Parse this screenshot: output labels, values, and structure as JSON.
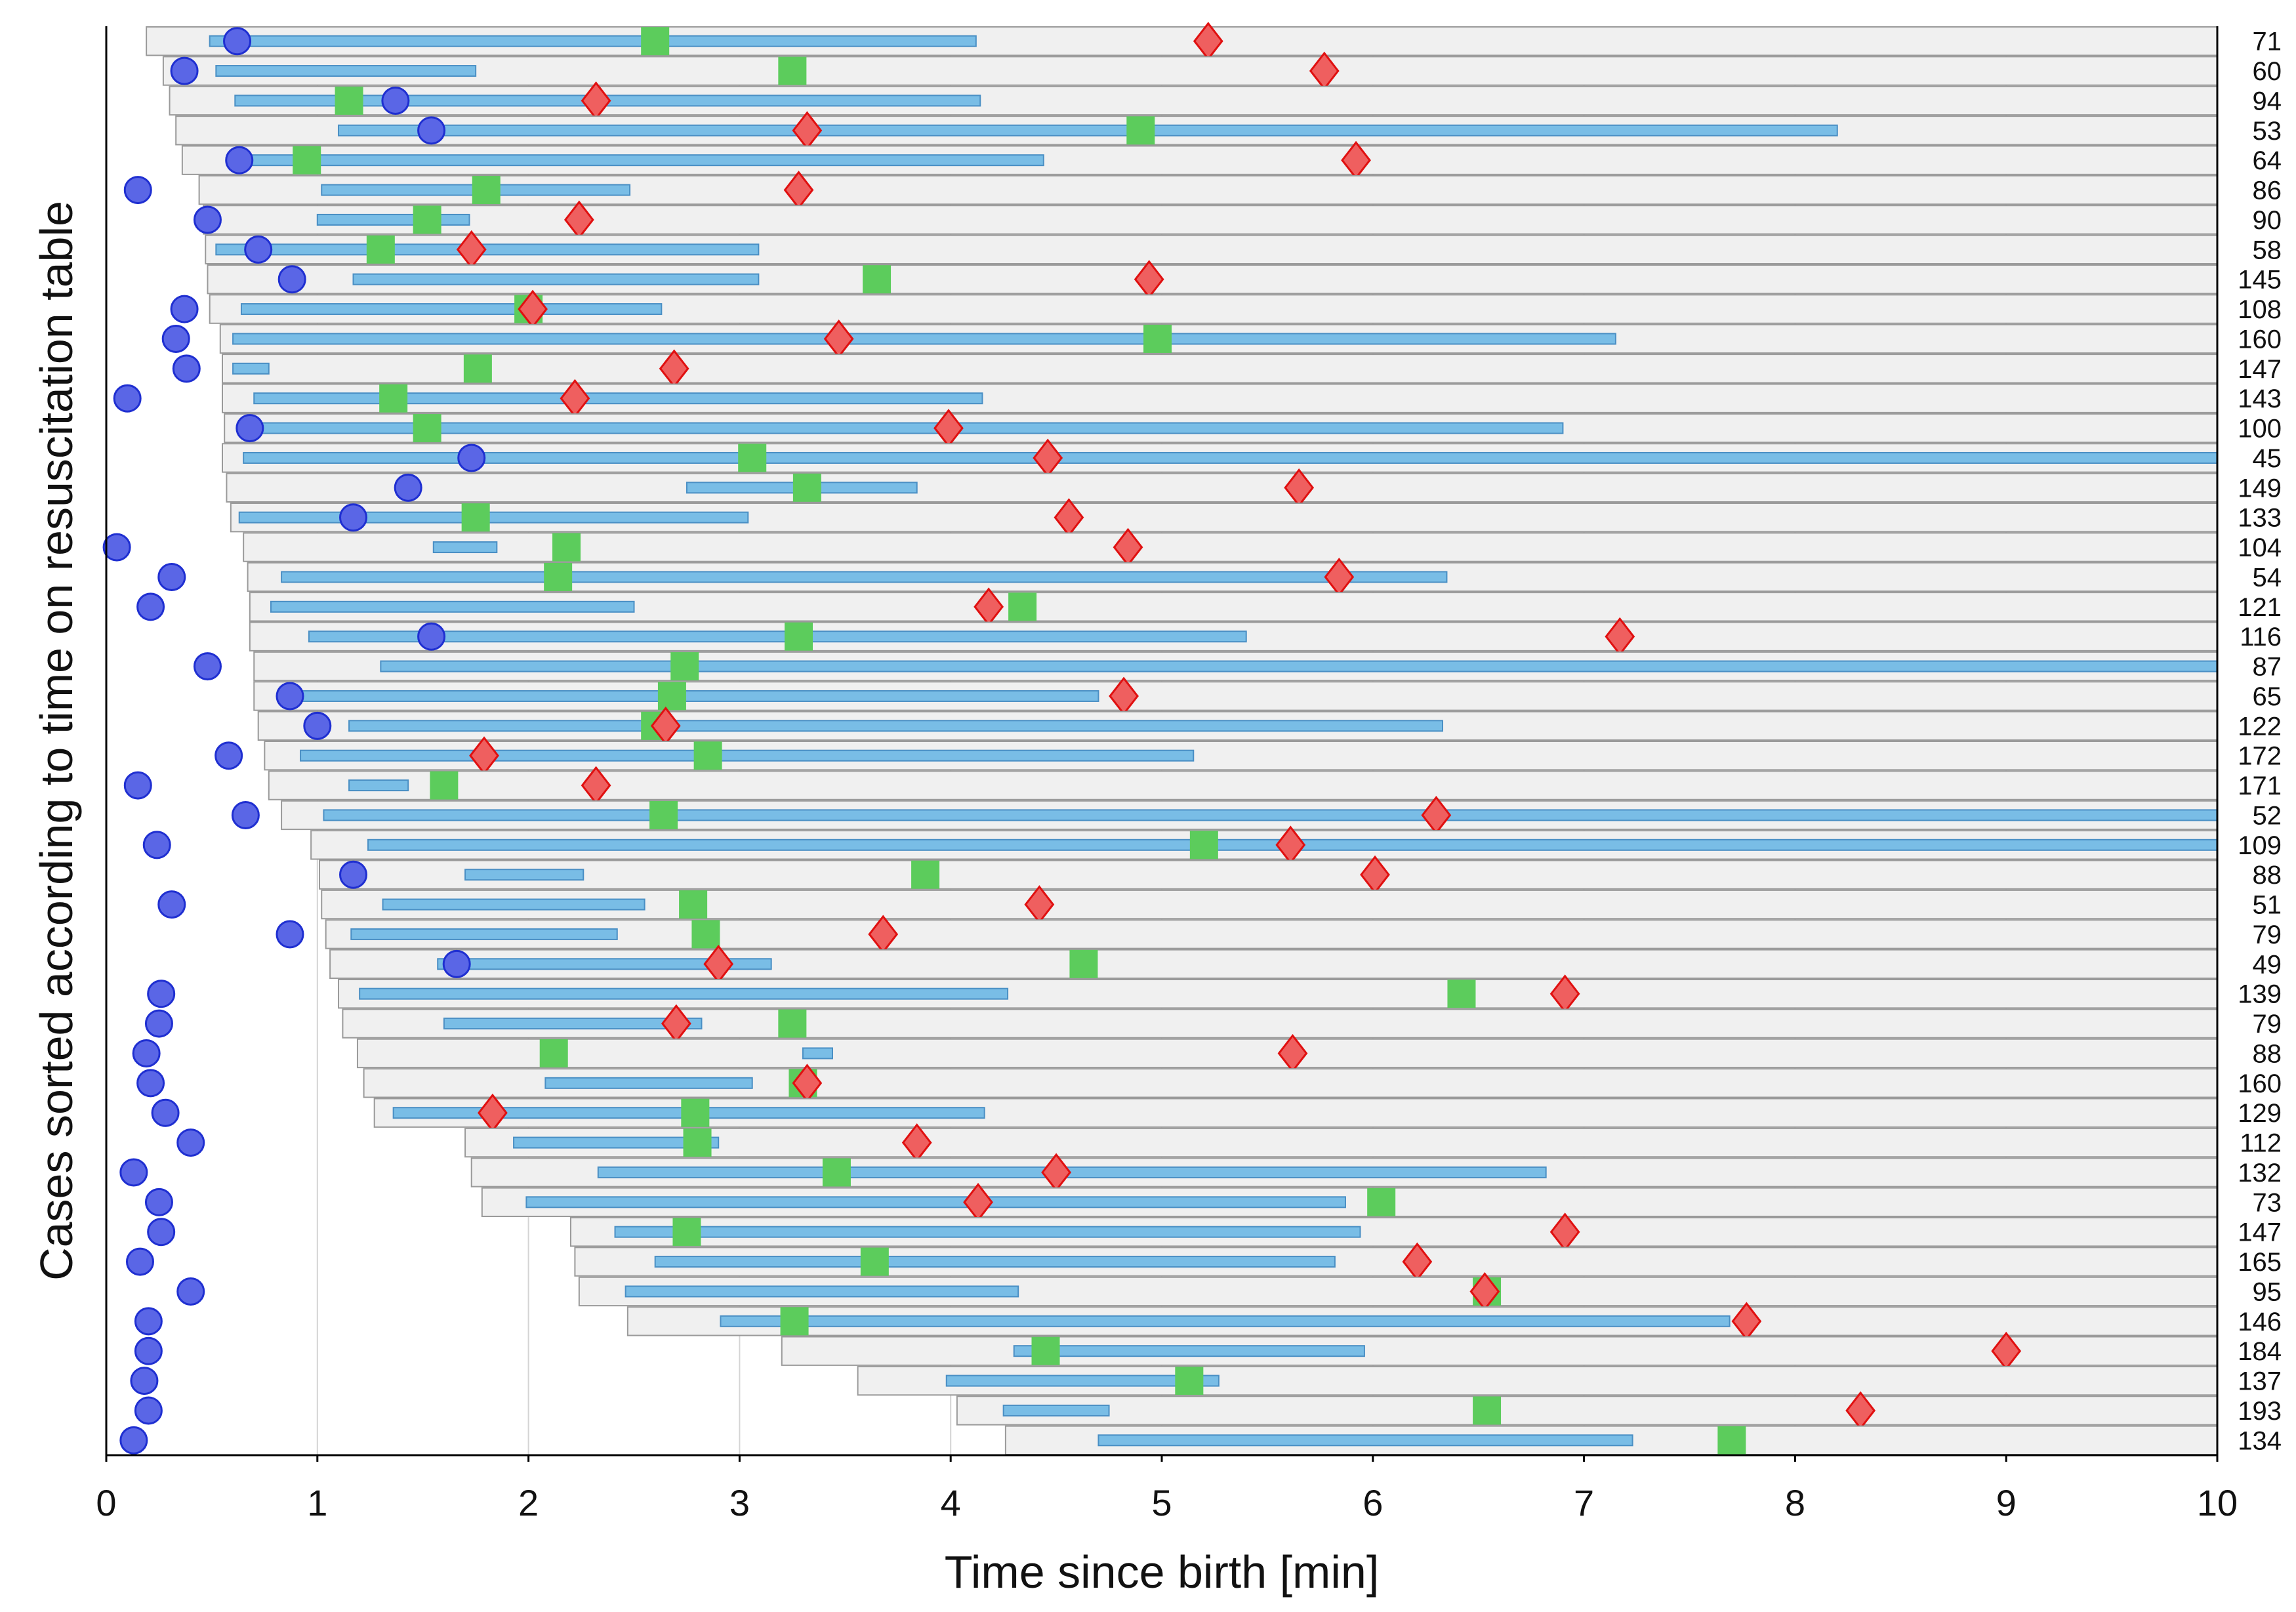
{
  "chart_data": {
    "type": "gantt-timeline",
    "xlabel": "Time since birth [min]",
    "ylabel": "Cases sorted according to time on resuscitation table",
    "xlim": [
      0,
      10
    ],
    "xticks": [
      "0",
      "1",
      "2",
      "3",
      "4",
      "5",
      "6",
      "7",
      "8",
      "9",
      "10"
    ],
    "grid": "vertical",
    "colors": {
      "table_box": "#f0f0f0",
      "table_box_edge": "#9a9a9a",
      "bar": "#79bde6",
      "bar_edge": "#4a8fc4",
      "circle": "#5a66e6",
      "circle_edge": "#1f2fd1",
      "square": "#5ccc5c",
      "diamond": "#ef5f5f",
      "diamond_edge": "#e01010"
    },
    "cases": [
      {
        "count": "71",
        "start": 0.19,
        "circle": 0.62,
        "bar": [
          0.49,
          4.12
        ],
        "square": 2.6,
        "diamond": 5.22
      },
      {
        "count": "60",
        "start": 0.27,
        "circle": 0.37,
        "bar": [
          0.52,
          1.75
        ],
        "square": 3.25,
        "diamond": 5.77
      },
      {
        "count": "94",
        "start": 0.3,
        "circle": 1.37,
        "bar": [
          0.61,
          4.14
        ],
        "square": 1.15,
        "diamond": 2.32
      },
      {
        "count": "53",
        "start": 0.33,
        "circle": 1.54,
        "bar": [
          1.1,
          8.2
        ],
        "square": 4.9,
        "diamond": 3.32
      },
      {
        "count": "64",
        "start": 0.36,
        "circle": 0.63,
        "bar": [
          0.63,
          4.44
        ],
        "square": 0.95,
        "diamond": 5.92
      },
      {
        "count": "86",
        "start": 0.44,
        "circle": 0.15,
        "bar": [
          1.02,
          2.48
        ],
        "square": 1.8,
        "diamond": 3.28
      },
      {
        "count": "90",
        "start": 0.46,
        "circle": 0.48,
        "bar": [
          1.0,
          1.72
        ],
        "square": 1.52,
        "diamond": 2.24
      },
      {
        "count": "58",
        "start": 0.47,
        "circle": 0.72,
        "bar": [
          0.52,
          3.09
        ],
        "square": 1.3,
        "diamond": 1.73
      },
      {
        "count": "145",
        "start": 0.48,
        "circle": 0.88,
        "bar": [
          1.17,
          3.09
        ],
        "square": 3.65,
        "diamond": 4.94
      },
      {
        "count": "108",
        "start": 0.49,
        "circle": 0.37,
        "bar": [
          0.64,
          2.63
        ],
        "square": 2.0,
        "diamond": 2.02
      },
      {
        "count": "160",
        "start": 0.54,
        "circle": 0.33,
        "bar": [
          0.6,
          7.15
        ],
        "square": 4.98,
        "diamond": 3.47
      },
      {
        "count": "147",
        "start": 0.55,
        "circle": 0.38,
        "bar": [
          0.6,
          0.77
        ],
        "square": 1.76,
        "diamond": 2.69
      },
      {
        "count": "143",
        "start": 0.55,
        "circle": 0.1,
        "bar": [
          0.7,
          4.15
        ],
        "square": 1.36,
        "diamond": 2.22
      },
      {
        "count": "100",
        "start": 0.56,
        "circle": 0.68,
        "bar": [
          0.74,
          6.9
        ],
        "square": 1.52,
        "diamond": 3.99
      },
      {
        "count": "45",
        "start": 0.55,
        "circle": 1.73,
        "bar": [
          0.65,
          10.0
        ],
        "square": 3.06,
        "diamond": 4.46
      },
      {
        "count": "149",
        "start": 0.57,
        "circle": 1.43,
        "bar": [
          2.75,
          3.84
        ],
        "square": 3.32,
        "diamond": 5.65
      },
      {
        "count": "133",
        "start": 0.59,
        "circle": 1.17,
        "bar": [
          0.63,
          3.04
        ],
        "square": 1.75,
        "diamond": 4.56
      },
      {
        "count": "104",
        "start": 0.65,
        "circle": 0.05,
        "bar": [
          1.55,
          1.85
        ],
        "square": 2.18,
        "diamond": 4.84
      },
      {
        "count": "54",
        "start": 0.67,
        "circle": 0.31,
        "bar": [
          0.83,
          6.35
        ],
        "square": 2.14,
        "diamond": 5.84
      },
      {
        "count": "121",
        "start": 0.68,
        "circle": 0.21,
        "bar": [
          0.78,
          2.5
        ],
        "square": 4.34,
        "diamond": 4.18
      },
      {
        "count": "116",
        "start": 0.68,
        "circle": 1.54,
        "bar": [
          0.96,
          5.4
        ],
        "square": 3.28,
        "diamond": 7.17
      },
      {
        "count": "87",
        "start": 0.7,
        "circle": 0.48,
        "bar": [
          1.3,
          10.0
        ],
        "square": 2.74,
        "diamond": null
      },
      {
        "count": "65",
        "start": 0.7,
        "circle": 0.87,
        "bar": [
          0.88,
          4.7
        ],
        "square": 2.68,
        "diamond": 4.82
      },
      {
        "count": "122",
        "start": 0.72,
        "circle": 1.0,
        "bar": [
          1.15,
          6.33
        ],
        "square": 2.6,
        "diamond": 2.65
      },
      {
        "count": "172",
        "start": 0.75,
        "circle": 0.58,
        "bar": [
          0.92,
          5.15
        ],
        "square": 2.85,
        "diamond": 1.79
      },
      {
        "count": "171",
        "start": 0.77,
        "circle": 0.15,
        "bar": [
          1.15,
          1.43
        ],
        "square": 1.6,
        "diamond": 2.32
      },
      {
        "count": "52",
        "start": 0.83,
        "circle": 0.66,
        "bar": [
          1.03,
          10.0
        ],
        "square": 2.64,
        "diamond": 6.3
      },
      {
        "count": "109",
        "start": 0.97,
        "circle": 0.24,
        "bar": [
          1.24,
          10.0
        ],
        "square": 5.2,
        "diamond": 5.61
      },
      {
        "count": "88",
        "start": 1.01,
        "circle": 1.17,
        "bar": [
          1.7,
          2.26
        ],
        "square": 3.88,
        "diamond": 6.01
      },
      {
        "count": "51",
        "start": 1.02,
        "circle": 0.31,
        "bar": [
          1.31,
          2.55
        ],
        "square": 2.78,
        "diamond": 4.42
      },
      {
        "count": "79",
        "start": 1.04,
        "circle": 0.87,
        "bar": [
          1.16,
          2.42
        ],
        "square": 2.84,
        "diamond": 3.68
      },
      {
        "count": "49",
        "start": 1.06,
        "circle": 1.66,
        "bar": [
          1.57,
          3.15
        ],
        "square": 4.63,
        "diamond": 2.9
      },
      {
        "count": "139",
        "start": 1.1,
        "circle": 0.26,
        "bar": [
          1.2,
          4.27
        ],
        "square": 6.42,
        "diamond": 6.91
      },
      {
        "count": "79",
        "start": 1.12,
        "circle": 0.25,
        "bar": [
          1.6,
          2.82
        ],
        "square": 3.25,
        "diamond": 2.7
      },
      {
        "count": "88",
        "start": 1.19,
        "circle": 0.19,
        "bar": [
          3.3,
          3.44
        ],
        "square": 2.12,
        "diamond": 5.62
      },
      {
        "count": "160",
        "start": 1.22,
        "circle": 0.21,
        "bar": [
          2.08,
          3.06
        ],
        "square": 3.3,
        "diamond": 3.32
      },
      {
        "count": "129",
        "start": 1.27,
        "circle": 0.28,
        "bar": [
          1.36,
          4.16
        ],
        "square": 2.79,
        "diamond": 1.83
      },
      {
        "count": "112",
        "start": 1.7,
        "circle": 0.4,
        "bar": [
          1.93,
          2.9
        ],
        "square": 2.8,
        "diamond": 3.84
      },
      {
        "count": "132",
        "start": 1.73,
        "circle": 0.13,
        "bar": [
          2.33,
          6.82
        ],
        "square": 3.46,
        "diamond": 4.5
      },
      {
        "count": "73",
        "start": 1.78,
        "circle": 0.25,
        "bar": [
          1.99,
          5.87
        ],
        "square": 6.04,
        "diamond": 4.13
      },
      {
        "count": "147",
        "start": 2.2,
        "circle": 0.26,
        "bar": [
          2.41,
          5.94
        ],
        "square": 2.75,
        "diamond": 6.91
      },
      {
        "count": "165",
        "start": 2.22,
        "circle": 0.16,
        "bar": [
          2.6,
          5.82
        ],
        "square": 3.64,
        "diamond": 6.21
      },
      {
        "count": "95",
        "start": 2.24,
        "circle": 0.4,
        "bar": [
          2.46,
          4.32
        ],
        "square": 6.54,
        "diamond": 6.53
      },
      {
        "count": "146",
        "start": 2.47,
        "circle": 0.2,
        "bar": [
          2.91,
          7.69
        ],
        "square": 3.26,
        "diamond": 7.77
      },
      {
        "count": "184",
        "start": 3.2,
        "circle": 0.2,
        "bar": [
          4.3,
          5.96
        ],
        "square": 4.45,
        "diamond": 9.0
      },
      {
        "count": "137",
        "start": 3.56,
        "circle": 0.18,
        "bar": [
          3.98,
          5.27
        ],
        "square": 5.13,
        "diamond": null
      },
      {
        "count": "193",
        "start": 4.03,
        "circle": 0.2,
        "bar": [
          4.25,
          4.75
        ],
        "square": 6.54,
        "diamond": 8.31
      },
      {
        "count": "134",
        "start": 4.26,
        "circle": 0.13,
        "bar": [
          4.7,
          7.23
        ],
        "square": 7.7,
        "diamond": null
      }
    ]
  }
}
